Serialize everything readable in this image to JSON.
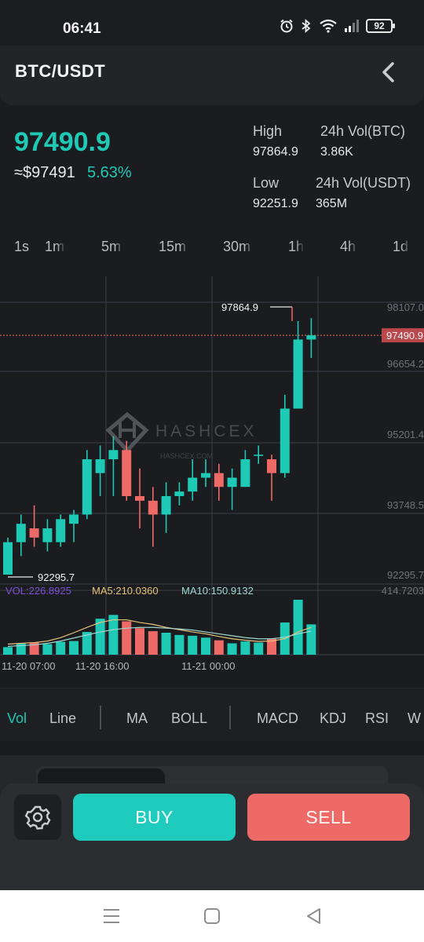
{
  "status": {
    "time": "06:41",
    "battery": "92"
  },
  "header": {
    "pair": "BTC/USDT"
  },
  "ticker": {
    "last": "97490.9",
    "approx": "≈$97491",
    "change": "5.63%",
    "high_label": "High",
    "high_value": "97864.9",
    "low_label": "Low",
    "low_value": "92251.9",
    "vol_btc_label": "24h Vol(BTC)",
    "vol_btc_value": "3.86K",
    "vol_usdt_label": "24h Vol(USDT)",
    "vol_usdt_value": "365M"
  },
  "intervals": [
    "1s",
    "1m",
    "5m",
    "15m",
    "30m",
    "1h",
    "4h",
    "1d"
  ],
  "chart": {
    "watermark": "HASHCEX",
    "watermark_sub": "HASHCEX.COM",
    "max_label": "97864.9",
    "min_label": "92295.7",
    "current_price": "97490.9",
    "price_ticks": [
      "98107.0",
      "96654.2",
      "95201.4",
      "93748.5",
      "92295.7"
    ],
    "vol_tick": "414.7203",
    "vol_text": "VOL:226.8925",
    "ma5_text": "MA5:210.0360",
    "ma10_text": "MA10:150.9132",
    "time_labels": [
      "11-20 07:00",
      "11-20 16:00",
      "11-21 00:00"
    ]
  },
  "colors": {
    "up": "#1ec9b6",
    "down": "#ee6a66",
    "vol": "#7b52d6",
    "ma5": "#e8c37a",
    "ma10": "#9fd8cf"
  },
  "chart_data": {
    "type": "candlestick",
    "interval": "1h",
    "yrange": [
      92295.7,
      98107.0
    ],
    "candles": [
      {
        "o": 92295.7,
        "c": 93000,
        "h": 93100,
        "l": 92300
      },
      {
        "o": 93000,
        "c": 93400,
        "h": 93600,
        "l": 92700
      },
      {
        "o": 93300,
        "c": 93100,
        "h": 93800,
        "l": 92900
      },
      {
        "o": 93000,
        "c": 93300,
        "h": 93500,
        "l": 92800
      },
      {
        "o": 93000,
        "c": 93500,
        "h": 93600,
        "l": 92900
      },
      {
        "o": 93400,
        "c": 93600,
        "h": 93700,
        "l": 93000
      },
      {
        "o": 93600,
        "c": 94800,
        "h": 95000,
        "l": 93500
      },
      {
        "o": 94500,
        "c": 94800,
        "h": 95100,
        "l": 94000
      },
      {
        "o": 94800,
        "c": 95000,
        "h": 95300,
        "l": 94000
      },
      {
        "o": 95000,
        "c": 94000,
        "h": 95200,
        "l": 93900
      },
      {
        "o": 94000,
        "c": 93900,
        "h": 94600,
        "l": 93300
      },
      {
        "o": 93900,
        "c": 93600,
        "h": 94200,
        "l": 92900
      },
      {
        "o": 93600,
        "c": 94000,
        "h": 94300,
        "l": 93200
      },
      {
        "o": 94000,
        "c": 94100,
        "h": 94300,
        "l": 93800
      },
      {
        "o": 94100,
        "c": 94400,
        "h": 94800,
        "l": 93900
      },
      {
        "o": 94400,
        "c": 94500,
        "h": 94800,
        "l": 94200
      },
      {
        "o": 94500,
        "c": 94200,
        "h": 94700,
        "l": 93900
      },
      {
        "o": 94200,
        "c": 94400,
        "h": 94600,
        "l": 93700
      },
      {
        "o": 94200,
        "c": 94800,
        "h": 95000,
        "l": 94200
      },
      {
        "o": 94900,
        "c": 94900,
        "h": 95100,
        "l": 94700
      },
      {
        "o": 94800,
        "c": 94500,
        "h": 94900,
        "l": 93900
      },
      {
        "o": 94500,
        "c": 95900,
        "h": 96200,
        "l": 94400
      },
      {
        "o": 95900,
        "c": 97400,
        "h": 97800,
        "l": 95900
      },
      {
        "o": 97400,
        "c": 97490.9,
        "h": 97864.9,
        "l": 97000
      }
    ],
    "volume": [
      20,
      30,
      32,
      28,
      34,
      36,
      60,
      95,
      105,
      88,
      70,
      62,
      58,
      52,
      50,
      45,
      38,
      30,
      35,
      32,
      42,
      85,
      145,
      80
    ],
    "ma5": [
      28,
      30,
      32,
      36,
      45,
      58,
      72,
      85,
      92,
      92,
      85,
      80,
      72,
      66,
      60,
      55,
      48,
      42,
      38,
      35,
      36,
      42,
      60,
      72
    ],
    "ma10": [
      22,
      24,
      26,
      30,
      36,
      44,
      52,
      60,
      66,
      70,
      72,
      72,
      70,
      68,
      65,
      60,
      55,
      50,
      45,
      42,
      42,
      46,
      55,
      62
    ],
    "vol_max": 414.7203
  }
}
